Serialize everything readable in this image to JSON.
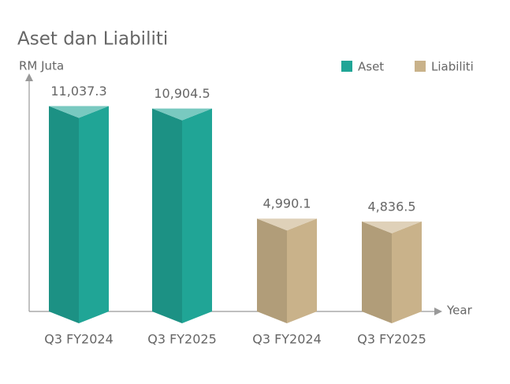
{
  "chart_data": {
    "type": "bar3d",
    "title": "Aset dan Liabiliti",
    "y_label": "RM Juta",
    "x_label": "Year",
    "categories": [
      "Q3 FY2024",
      "Q3 FY2025",
      "Q3 FY2024",
      "Q3 FY2025"
    ],
    "series": [
      {
        "name": "Aset",
        "color": "#20a596",
        "values": [
          11037.3,
          10904.5,
          null,
          null
        ],
        "value_labels": [
          "11,037.3",
          "10,904.5",
          null,
          null
        ]
      },
      {
        "name": "Liabiliti",
        "color": "#c9b28a",
        "values": [
          null,
          null,
          4990.1,
          4836.5
        ],
        "value_labels": [
          null,
          null,
          "4,990.1",
          "4,836.5"
        ]
      }
    ],
    "ylim": [
      0,
      12500
    ]
  }
}
